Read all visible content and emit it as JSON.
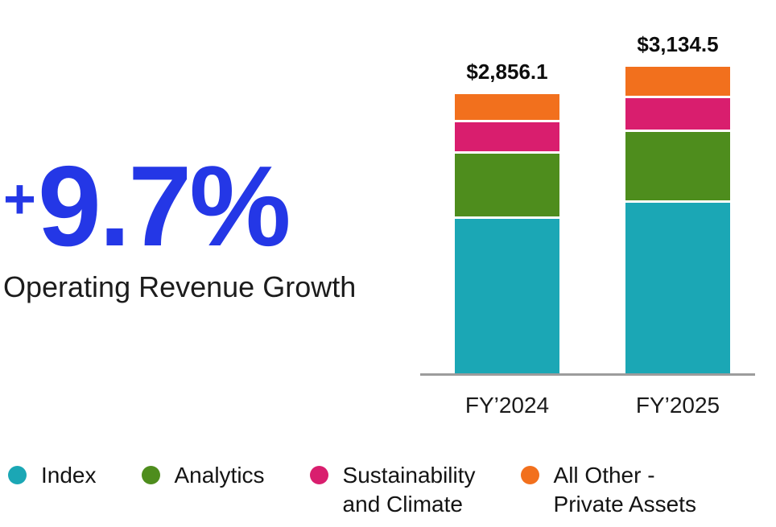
{
  "headline": {
    "plus": "+",
    "value": "9.7%",
    "label": "Operating Revenue Growth",
    "accent_color": "#2437e6"
  },
  "chart_data": {
    "type": "bar",
    "subtype": "stacked",
    "title": "Operating Revenue Growth +9.7%",
    "categories": [
      "FY’2024",
      "FY’2025"
    ],
    "totals": [
      2856.1,
      3134.5
    ],
    "total_labels": [
      "$2,856.1",
      "$3,134.5"
    ],
    "series": [
      {
        "name": "Index",
        "color": "#1ba7b5",
        "values": [
          1606.5,
          1771.0
        ]
      },
      {
        "name": "Analytics",
        "color": "#4e8d1d",
        "values": [
          664.9,
          725.0
        ]
      },
      {
        "name": "Sustainability and Climate",
        "color": "#d91e6e",
        "values": [
          319.7,
          345.0
        ]
      },
      {
        "name": "All Other - Private Assets",
        "color": "#f2701d",
        "values": [
          265.0,
          293.5
        ]
      }
    ],
    "ylim": [
      0,
      3300
    ],
    "grid": false,
    "legend_position": "bottom"
  },
  "legend": {
    "items": [
      {
        "label": "Index",
        "color": "#1ba7b5"
      },
      {
        "label": "Analytics",
        "color": "#4e8d1d"
      },
      {
        "label": "Sustainability\nand Climate",
        "color": "#d91e6e"
      },
      {
        "label": "All Other -\nPrivate Assets",
        "color": "#f2701d"
      }
    ]
  }
}
